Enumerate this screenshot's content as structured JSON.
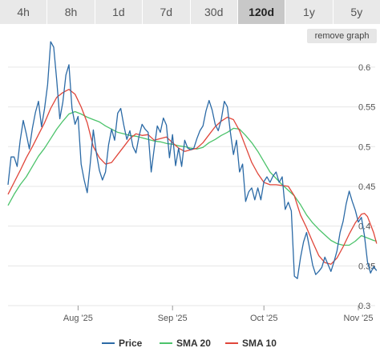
{
  "tabs": [
    {
      "label": "4h",
      "active": false
    },
    {
      "label": "8h",
      "active": false
    },
    {
      "label": "1d",
      "active": false
    },
    {
      "label": "7d",
      "active": false
    },
    {
      "label": "30d",
      "active": false
    },
    {
      "label": "120d",
      "active": true
    },
    {
      "label": "1y",
      "active": false
    },
    {
      "label": "5y",
      "active": false
    }
  ],
  "remove_graph_label": "remove graph",
  "colors": {
    "price": "#2b6aa6",
    "sma20": "#4cc36b",
    "sma10": "#e0463a",
    "grid": "#e6e6e6"
  },
  "chart_data": {
    "type": "line",
    "ylim": [
      0.3,
      0.62
    ],
    "y_ticks": [
      {
        "value": 0.6,
        "label": "0.6"
      },
      {
        "value": 0.55,
        "label": "0.55"
      },
      {
        "value": 0.5,
        "label": "0.5"
      },
      {
        "value": 0.45,
        "label": "0.45"
      },
      {
        "value": 0.4,
        "label": "0.4"
      },
      {
        "value": 0.35,
        "label": "0.35"
      },
      {
        "value": 0.3,
        "label": "0.3"
      }
    ],
    "x_ticks": [
      {
        "date": "2025-08-01",
        "label": "Aug '25"
      },
      {
        "date": "2025-09-01",
        "label": "Sep '25"
      },
      {
        "date": "2025-10-01",
        "label": "Oct '25"
      },
      {
        "date": "2025-11-01",
        "label": "Nov '25"
      }
    ],
    "xlim": [
      "2025-07-09",
      "2025-11-06"
    ],
    "legend_position": "bottom",
    "series": [
      {
        "name": "Price",
        "key": "price",
        "points": [
          [
            "2025-07-09",
            0.452
          ],
          [
            "2025-07-10",
            0.487
          ],
          [
            "2025-07-11",
            0.487
          ],
          [
            "2025-07-12",
            0.475
          ],
          [
            "2025-07-13",
            0.508
          ],
          [
            "2025-07-14",
            0.533
          ],
          [
            "2025-07-15",
            0.516
          ],
          [
            "2025-07-16",
            0.497
          ],
          [
            "2025-07-17",
            0.523
          ],
          [
            "2025-07-18",
            0.543
          ],
          [
            "2025-07-19",
            0.557
          ],
          [
            "2025-07-20",
            0.525
          ],
          [
            "2025-07-21",
            0.548
          ],
          [
            "2025-07-22",
            0.578
          ],
          [
            "2025-07-23",
            0.632
          ],
          [
            "2025-07-24",
            0.625
          ],
          [
            "2025-07-25",
            0.583
          ],
          [
            "2025-07-26",
            0.535
          ],
          [
            "2025-07-27",
            0.556
          ],
          [
            "2025-07-28",
            0.59
          ],
          [
            "2025-07-29",
            0.603
          ],
          [
            "2025-07-30",
            0.548
          ],
          [
            "2025-07-31",
            0.528
          ],
          [
            "2025-08-01",
            0.538
          ],
          [
            "2025-08-02",
            0.478
          ],
          [
            "2025-08-03",
            0.458
          ],
          [
            "2025-08-04",
            0.442
          ],
          [
            "2025-08-05",
            0.479
          ],
          [
            "2025-08-06",
            0.521
          ],
          [
            "2025-08-07",
            0.492
          ],
          [
            "2025-08-08",
            0.47
          ],
          [
            "2025-08-09",
            0.458
          ],
          [
            "2025-08-10",
            0.468
          ],
          [
            "2025-08-11",
            0.502
          ],
          [
            "2025-08-12",
            0.522
          ],
          [
            "2025-08-13",
            0.508
          ],
          [
            "2025-08-14",
            0.542
          ],
          [
            "2025-08-15",
            0.548
          ],
          [
            "2025-08-16",
            0.527
          ],
          [
            "2025-08-17",
            0.509
          ],
          [
            "2025-08-18",
            0.52
          ],
          [
            "2025-08-19",
            0.5
          ],
          [
            "2025-08-20",
            0.492
          ],
          [
            "2025-08-21",
            0.513
          ],
          [
            "2025-08-22",
            0.528
          ],
          [
            "2025-08-23",
            0.522
          ],
          [
            "2025-08-24",
            0.518
          ],
          [
            "2025-08-25",
            0.468
          ],
          [
            "2025-08-26",
            0.498
          ],
          [
            "2025-08-27",
            0.526
          ],
          [
            "2025-08-28",
            0.518
          ],
          [
            "2025-08-29",
            0.536
          ],
          [
            "2025-08-30",
            0.527
          ],
          [
            "2025-08-31",
            0.486
          ],
          [
            "2025-09-01",
            0.515
          ],
          [
            "2025-09-02",
            0.476
          ],
          [
            "2025-09-03",
            0.498
          ],
          [
            "2025-09-04",
            0.475
          ],
          [
            "2025-09-05",
            0.508
          ],
          [
            "2025-09-06",
            0.498
          ],
          [
            "2025-09-07",
            0.496
          ],
          [
            "2025-09-08",
            0.498
          ],
          [
            "2025-09-09",
            0.51
          ],
          [
            "2025-09-10",
            0.52
          ],
          [
            "2025-09-11",
            0.526
          ],
          [
            "2025-09-12",
            0.545
          ],
          [
            "2025-09-13",
            0.558
          ],
          [
            "2025-09-14",
            0.546
          ],
          [
            "2025-09-15",
            0.528
          ],
          [
            "2025-09-16",
            0.52
          ],
          [
            "2025-09-17",
            0.534
          ],
          [
            "2025-09-18",
            0.557
          ],
          [
            "2025-09-19",
            0.55
          ],
          [
            "2025-09-20",
            0.518
          ],
          [
            "2025-09-21",
            0.49
          ],
          [
            "2025-09-22",
            0.508
          ],
          [
            "2025-09-23",
            0.468
          ],
          [
            "2025-09-24",
            0.478
          ],
          [
            "2025-09-25",
            0.431
          ],
          [
            "2025-09-26",
            0.443
          ],
          [
            "2025-09-27",
            0.448
          ],
          [
            "2025-09-28",
            0.433
          ],
          [
            "2025-09-29",
            0.448
          ],
          [
            "2025-09-30",
            0.433
          ],
          [
            "2025-10-01",
            0.456
          ],
          [
            "2025-10-02",
            0.462
          ],
          [
            "2025-10-03",
            0.455
          ],
          [
            "2025-10-04",
            0.463
          ],
          [
            "2025-10-05",
            0.468
          ],
          [
            "2025-10-06",
            0.455
          ],
          [
            "2025-10-07",
            0.462
          ],
          [
            "2025-10-08",
            0.421
          ],
          [
            "2025-10-09",
            0.43
          ],
          [
            "2025-10-10",
            0.419
          ],
          [
            "2025-10-11",
            0.337
          ],
          [
            "2025-10-12",
            0.334
          ],
          [
            "2025-10-13",
            0.36
          ],
          [
            "2025-10-14",
            0.38
          ],
          [
            "2025-10-15",
            0.392
          ],
          [
            "2025-10-16",
            0.372
          ],
          [
            "2025-10-17",
            0.351
          ],
          [
            "2025-10-18",
            0.339
          ],
          [
            "2025-10-19",
            0.343
          ],
          [
            "2025-10-20",
            0.348
          ],
          [
            "2025-10-21",
            0.361
          ],
          [
            "2025-10-22",
            0.352
          ],
          [
            "2025-10-23",
            0.343
          ],
          [
            "2025-10-24",
            0.355
          ],
          [
            "2025-10-25",
            0.369
          ],
          [
            "2025-10-26",
            0.392
          ],
          [
            "2025-10-27",
            0.406
          ],
          [
            "2025-10-28",
            0.428
          ],
          [
            "2025-10-29",
            0.444
          ],
          [
            "2025-10-30",
            0.431
          ],
          [
            "2025-10-31",
            0.42
          ],
          [
            "2025-11-01",
            0.405
          ],
          [
            "2025-11-02",
            0.411
          ],
          [
            "2025-11-03",
            0.388
          ],
          [
            "2025-11-04",
            0.355
          ],
          [
            "2025-11-05",
            0.341
          ],
          [
            "2025-11-06",
            0.349
          ],
          [
            "2025-11-07",
            0.344
          ]
        ]
      },
      {
        "name": "SMA 20",
        "key": "sma20",
        "points": [
          [
            "2025-07-09",
            0.426
          ],
          [
            "2025-07-11",
            0.44
          ],
          [
            "2025-07-13",
            0.452
          ],
          [
            "2025-07-15",
            0.462
          ],
          [
            "2025-07-17",
            0.475
          ],
          [
            "2025-07-19",
            0.488
          ],
          [
            "2025-07-21",
            0.498
          ],
          [
            "2025-07-23",
            0.51
          ],
          [
            "2025-07-25",
            0.522
          ],
          [
            "2025-07-27",
            0.532
          ],
          [
            "2025-07-29",
            0.541
          ],
          [
            "2025-07-31",
            0.544
          ],
          [
            "2025-08-02",
            0.541
          ],
          [
            "2025-08-04",
            0.537
          ],
          [
            "2025-08-06",
            0.534
          ],
          [
            "2025-08-08",
            0.531
          ],
          [
            "2025-08-10",
            0.526
          ],
          [
            "2025-08-12",
            0.522
          ],
          [
            "2025-08-14",
            0.518
          ],
          [
            "2025-08-16",
            0.516
          ],
          [
            "2025-08-18",
            0.514
          ],
          [
            "2025-08-20",
            0.513
          ],
          [
            "2025-08-22",
            0.511
          ],
          [
            "2025-08-24",
            0.509
          ],
          [
            "2025-08-26",
            0.507
          ],
          [
            "2025-08-28",
            0.506
          ],
          [
            "2025-08-30",
            0.504
          ],
          [
            "2025-09-01",
            0.503
          ],
          [
            "2025-09-03",
            0.501
          ],
          [
            "2025-09-05",
            0.5
          ],
          [
            "2025-09-07",
            0.498
          ],
          [
            "2025-09-09",
            0.497
          ],
          [
            "2025-09-11",
            0.499
          ],
          [
            "2025-09-13",
            0.505
          ],
          [
            "2025-09-15",
            0.509
          ],
          [
            "2025-09-17",
            0.514
          ],
          [
            "2025-09-19",
            0.518
          ],
          [
            "2025-09-21",
            0.523
          ],
          [
            "2025-09-23",
            0.522
          ],
          [
            "2025-09-25",
            0.514
          ],
          [
            "2025-09-27",
            0.505
          ],
          [
            "2025-09-29",
            0.494
          ],
          [
            "2025-10-01",
            0.481
          ],
          [
            "2025-10-03",
            0.468
          ],
          [
            "2025-10-05",
            0.46
          ],
          [
            "2025-10-07",
            0.452
          ],
          [
            "2025-10-09",
            0.445
          ],
          [
            "2025-10-11",
            0.438
          ],
          [
            "2025-10-13",
            0.427
          ],
          [
            "2025-10-15",
            0.414
          ],
          [
            "2025-10-17",
            0.404
          ],
          [
            "2025-10-19",
            0.396
          ],
          [
            "2025-10-21",
            0.389
          ],
          [
            "2025-10-23",
            0.382
          ],
          [
            "2025-10-25",
            0.378
          ],
          [
            "2025-10-27",
            0.376
          ],
          [
            "2025-10-29",
            0.376
          ],
          [
            "2025-10-31",
            0.381
          ],
          [
            "2025-11-02",
            0.388
          ],
          [
            "2025-11-04",
            0.385
          ],
          [
            "2025-11-06",
            0.382
          ],
          [
            "2025-11-07",
            0.381
          ]
        ]
      },
      {
        "name": "SMA 10",
        "key": "sma10",
        "points": [
          [
            "2025-07-09",
            0.44
          ],
          [
            "2025-07-11",
            0.455
          ],
          [
            "2025-07-13",
            0.47
          ],
          [
            "2025-07-15",
            0.486
          ],
          [
            "2025-07-17",
            0.5
          ],
          [
            "2025-07-19",
            0.515
          ],
          [
            "2025-07-21",
            0.53
          ],
          [
            "2025-07-23",
            0.548
          ],
          [
            "2025-07-25",
            0.562
          ],
          [
            "2025-07-27",
            0.568
          ],
          [
            "2025-07-29",
            0.572
          ],
          [
            "2025-07-31",
            0.566
          ],
          [
            "2025-08-02",
            0.55
          ],
          [
            "2025-08-04",
            0.53
          ],
          [
            "2025-08-06",
            0.5
          ],
          [
            "2025-08-08",
            0.486
          ],
          [
            "2025-08-10",
            0.478
          ],
          [
            "2025-08-12",
            0.48
          ],
          [
            "2025-08-14",
            0.49
          ],
          [
            "2025-08-16",
            0.5
          ],
          [
            "2025-08-18",
            0.51
          ],
          [
            "2025-08-20",
            0.516
          ],
          [
            "2025-08-22",
            0.514
          ],
          [
            "2025-08-24",
            0.515
          ],
          [
            "2025-08-26",
            0.508
          ],
          [
            "2025-08-28",
            0.51
          ],
          [
            "2025-08-30",
            0.512
          ],
          [
            "2025-09-01",
            0.505
          ],
          [
            "2025-09-03",
            0.498
          ],
          [
            "2025-09-05",
            0.494
          ],
          [
            "2025-09-07",
            0.496
          ],
          [
            "2025-09-09",
            0.498
          ],
          [
            "2025-09-11",
            0.505
          ],
          [
            "2025-09-13",
            0.515
          ],
          [
            "2025-09-15",
            0.525
          ],
          [
            "2025-09-17",
            0.532
          ],
          [
            "2025-09-19",
            0.537
          ],
          [
            "2025-09-21",
            0.534
          ],
          [
            "2025-09-23",
            0.52
          ],
          [
            "2025-09-25",
            0.5
          ],
          [
            "2025-09-27",
            0.48
          ],
          [
            "2025-09-29",
            0.466
          ],
          [
            "2025-10-01",
            0.455
          ],
          [
            "2025-10-03",
            0.452
          ],
          [
            "2025-10-05",
            0.452
          ],
          [
            "2025-10-07",
            0.451
          ],
          [
            "2025-10-09",
            0.45
          ],
          [
            "2025-10-11",
            0.438
          ],
          [
            "2025-10-13",
            0.414
          ],
          [
            "2025-10-15",
            0.398
          ],
          [
            "2025-10-17",
            0.38
          ],
          [
            "2025-10-19",
            0.363
          ],
          [
            "2025-10-21",
            0.354
          ],
          [
            "2025-10-23",
            0.352
          ],
          [
            "2025-10-25",
            0.36
          ],
          [
            "2025-10-27",
            0.374
          ],
          [
            "2025-10-29",
            0.39
          ],
          [
            "2025-10-31",
            0.404
          ],
          [
            "2025-11-02",
            0.415
          ],
          [
            "2025-11-03",
            0.416
          ],
          [
            "2025-11-04",
            0.412
          ],
          [
            "2025-11-05",
            0.402
          ],
          [
            "2025-11-06",
            0.392
          ],
          [
            "2025-11-07",
            0.378
          ]
        ]
      }
    ]
  }
}
